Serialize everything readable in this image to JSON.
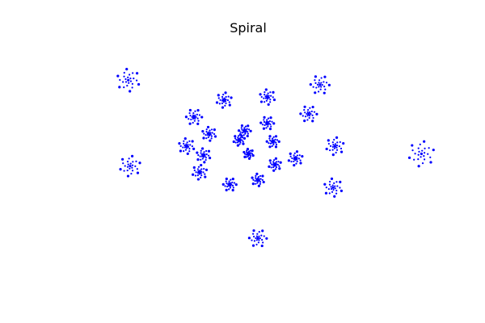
{
  "chart_data": {
    "type": "scatter",
    "title": "Spiral",
    "xlabel": "",
    "ylabel": "",
    "axes_visible": false,
    "grid": false,
    "legend": "none",
    "marker_color": "#0000ff",
    "background": "#ffffff",
    "clusters": [
      {
        "x": 0.0,
        "y": 0.0
      },
      {
        "x": 0.13,
        "y": 0.08
      },
      {
        "x": 0.14,
        "y": -0.07
      },
      {
        "x": 0.05,
        "y": -0.17
      },
      {
        "x": -0.1,
        "y": -0.2
      },
      {
        "x": -0.26,
        "y": -0.12
      },
      {
        "x": -0.33,
        "y": 0.05
      },
      {
        "x": -0.29,
        "y": 0.24
      },
      {
        "x": -0.13,
        "y": 0.35
      },
      {
        "x": 0.1,
        "y": 0.37
      },
      {
        "x": 0.32,
        "y": 0.26
      },
      {
        "x": 0.46,
        "y": 0.05
      },
      {
        "x": 0.45,
        "y": -0.22
      },
      {
        "x": 0.05,
        "y": -0.55
      },
      {
        "x": -0.63,
        "y": -0.08
      },
      {
        "x": -0.64,
        "y": 0.48
      },
      {
        "x": 0.38,
        "y": 0.45
      },
      {
        "x": 0.92,
        "y": 0.0
      },
      {
        "x": -0.21,
        "y": 0.13
      },
      {
        "x": -0.02,
        "y": 0.15
      },
      {
        "x": 0.25,
        "y": -0.03
      },
      {
        "x": -0.24,
        "y": -0.01
      },
      {
        "x": 0.1,
        "y": 0.2
      },
      {
        "x": -0.05,
        "y": 0.09
      }
    ],
    "points_per_cluster": 24,
    "xlim": [
      -1.0,
      1.0
    ],
    "ylim": [
      -0.85,
      0.75
    ]
  }
}
